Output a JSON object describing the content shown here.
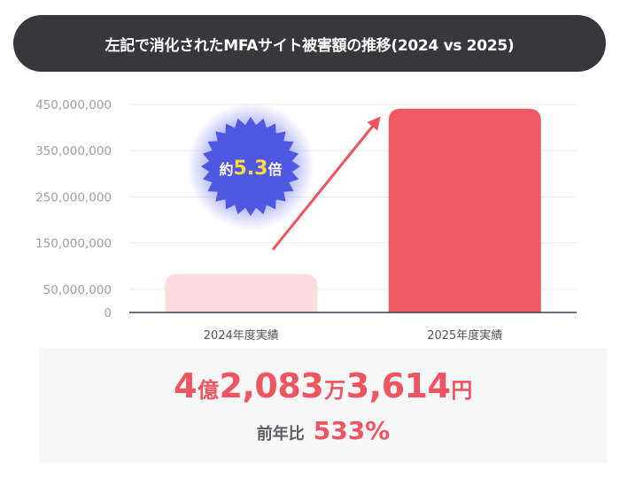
{
  "title": "左記で消化されたMFAサイト被害額の推移(2024 vs 2025)",
  "chart_data": {
    "type": "bar",
    "categories": [
      "2024年度実績",
      "2025年度実績"
    ],
    "values": [
      83000000,
      441000000
    ],
    "yticks": [
      0,
      50000000,
      150000000,
      250000000,
      350000000,
      450000000
    ],
    "ytick_labels": [
      "0",
      "50,000,000",
      "150,000,000",
      "250,000,000",
      "350,000,000",
      "450,000,000"
    ],
    "ylim": [
      0,
      450000000
    ],
    "bar_colors": [
      "#fbdde0",
      "#ef5a64"
    ],
    "grid": true,
    "annotation": {
      "prefix": "約",
      "value": "5.3",
      "suffix": "倍",
      "badge_color": "#4e58e0",
      "text_color": "#ffd93d",
      "arrow_color": "#ee5560"
    }
  },
  "summary": {
    "total": [
      {
        "text": "4",
        "size": "big"
      },
      {
        "text": "億",
        "size": "small"
      },
      {
        "text": "2,083",
        "size": "big"
      },
      {
        "text": "万",
        "size": "small"
      },
      {
        "text": "3,614",
        "size": "big"
      },
      {
        "text": "円",
        "size": "small"
      }
    ],
    "ratio_label": "前年比",
    "ratio_value": "533%"
  }
}
